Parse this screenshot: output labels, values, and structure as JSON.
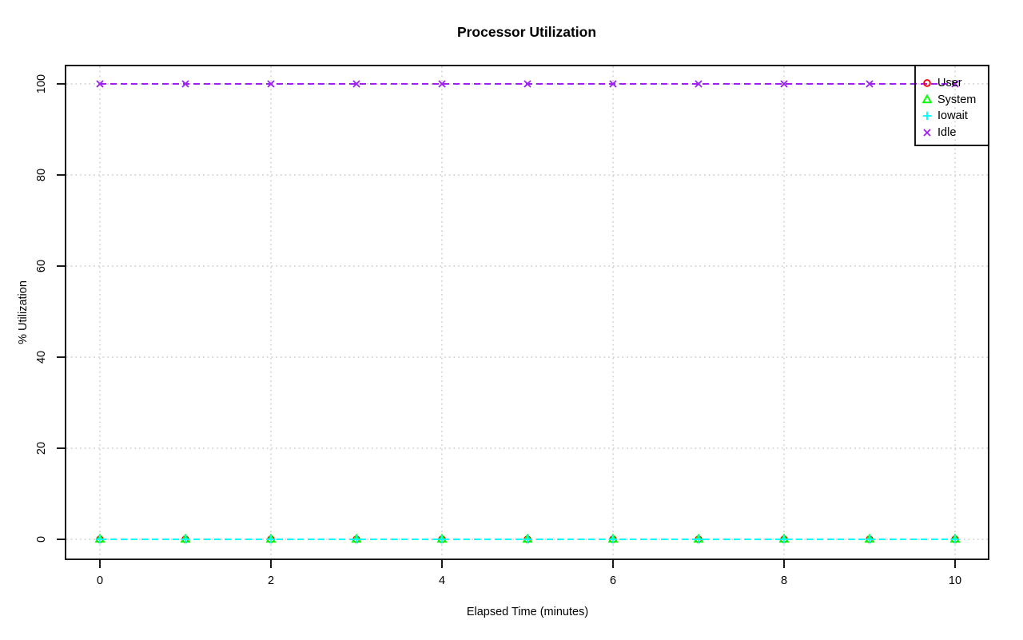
{
  "chart_data": {
    "type": "scatter",
    "title": "Processor Utilization",
    "xlabel": "Elapsed Time (minutes)",
    "ylabel": "% Utilization",
    "x": [
      0,
      1,
      2,
      3,
      4,
      5,
      6,
      7,
      8,
      9,
      10
    ],
    "series": [
      {
        "name": "User",
        "color": "#FF0000",
        "marker": "circle",
        "values": [
          0,
          0,
          0,
          0,
          0,
          0,
          0,
          0,
          0,
          0,
          0
        ]
      },
      {
        "name": "System",
        "color": "#00FF00",
        "marker": "triangle",
        "values": [
          0,
          0,
          0,
          0,
          0,
          0,
          0,
          0,
          0,
          0,
          0
        ]
      },
      {
        "name": "Iowait",
        "color": "#00FFFF",
        "marker": "plus",
        "values": [
          0,
          0,
          0,
          0,
          0,
          0,
          0,
          0,
          0,
          0,
          0
        ]
      },
      {
        "name": "Idle",
        "color": "#A020F0",
        "marker": "x",
        "values": [
          100,
          100,
          100,
          100,
          100,
          100,
          100,
          100,
          100,
          100,
          100
        ]
      }
    ],
    "xticks": [
      0,
      2,
      4,
      6,
      8,
      10
    ],
    "yticks": [
      0,
      20,
      40,
      60,
      80,
      100
    ],
    "xlim": [
      0,
      10
    ],
    "ylim": [
      0,
      100
    ],
    "grid": true,
    "grid_style": "dotted",
    "line_style": "dashed",
    "legend_position": "top-right"
  },
  "colors": {
    "background": "#FFFFFF",
    "axis": "#000000",
    "grid": "#D3D3D3"
  }
}
